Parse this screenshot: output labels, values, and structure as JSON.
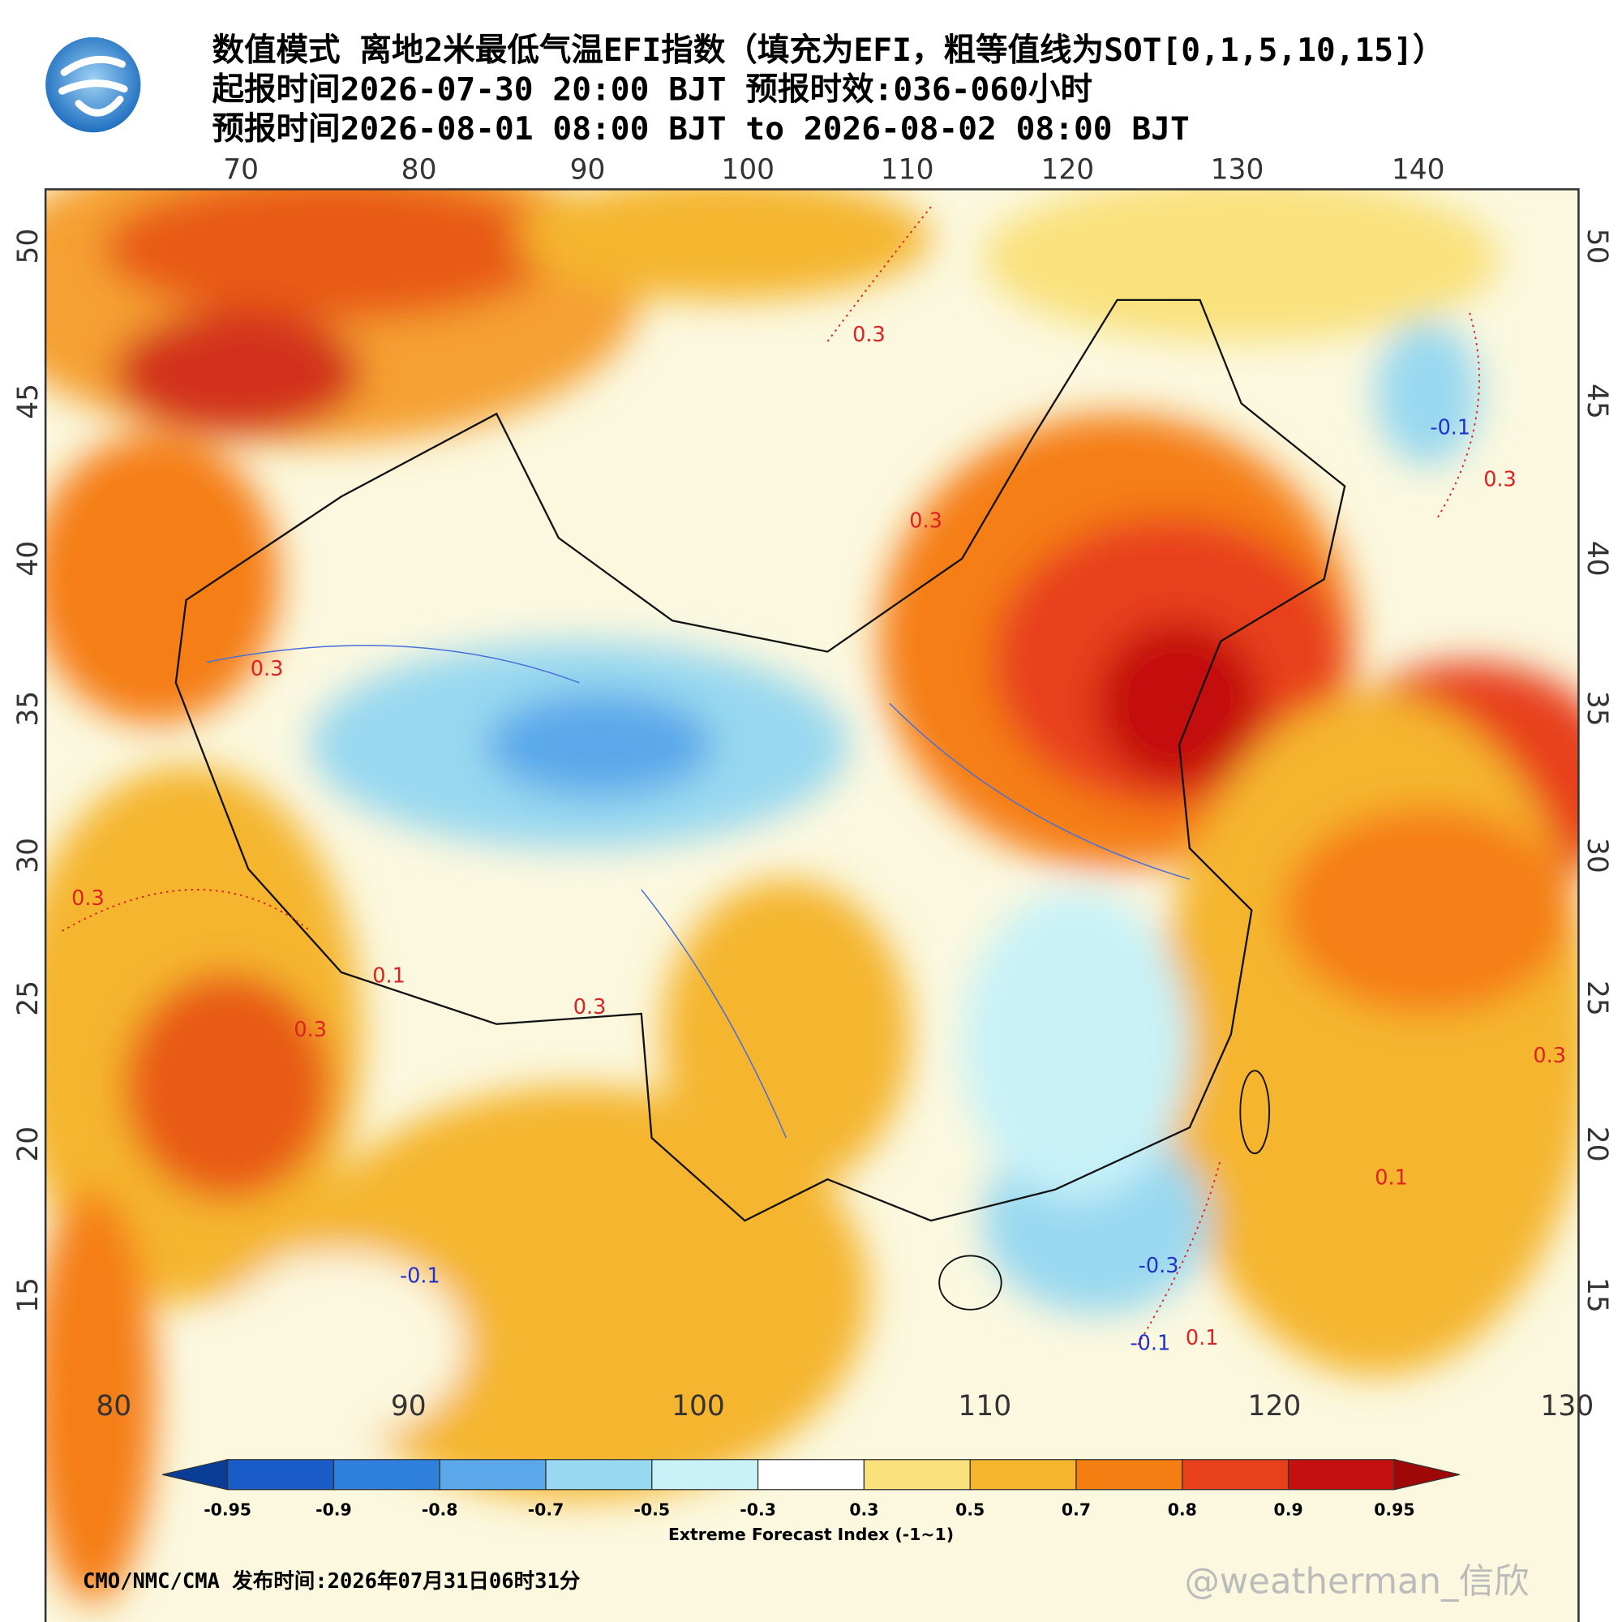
{
  "header": {
    "title_lines": [
      "数值模式 离地2米最低气温EFI指数（填充为EFI，粗等值线为SOT[0,1,5,10,15]）",
      "起报时间2026-07-30 20:00 BJT 预报时效:036-060小时",
      "预报时间2026-08-01 08:00 BJT to 2026-08-02 08:00 BJT"
    ]
  },
  "map": {
    "top_lon_labels": [
      "70",
      "80",
      "90",
      "100",
      "110",
      "120",
      "130",
      "140"
    ],
    "bottom_lon_labels": [
      "80",
      "90",
      "100",
      "110",
      "120",
      "130"
    ],
    "left_lat_labels": [
      "50",
      "45",
      "40",
      "35",
      "30",
      "25",
      "20",
      "15"
    ],
    "right_lat_labels": [
      "50",
      "45",
      "40",
      "35",
      "30",
      "25",
      "20",
      "15"
    ],
    "contour_labels": [
      "0.3",
      "0.3",
      "0.3",
      "0.3",
      "0.3",
      "0.3",
      "0.3",
      "0.3",
      "-0.3",
      "-0.1",
      "-0.1",
      "0.1",
      "0.1",
      "0.1",
      "-0.1"
    ]
  },
  "colorbar": {
    "ticks": [
      "-0.95",
      "-0.9",
      "-0.8",
      "-0.7",
      "-0.5",
      "-0.3",
      "0.3",
      "0.5",
      "0.7",
      "0.8",
      "0.9",
      "0.95"
    ],
    "colors": [
      "#0a3d96",
      "#1a5cc8",
      "#2f7fdd",
      "#5aa8ea",
      "#98d8f0",
      "#c8f2f8",
      "#ffffff",
      "#f9e17c",
      "#f5b52d",
      "#f57e12",
      "#e8401a",
      "#c41010",
      "#a00808"
    ],
    "label": "Extreme Forecast Index (-1~1)"
  },
  "footer": {
    "source": "CMO/NMC/CMA 发布时间:2026年07月31日06时31分",
    "watermark": "@weatherman_信欣"
  }
}
